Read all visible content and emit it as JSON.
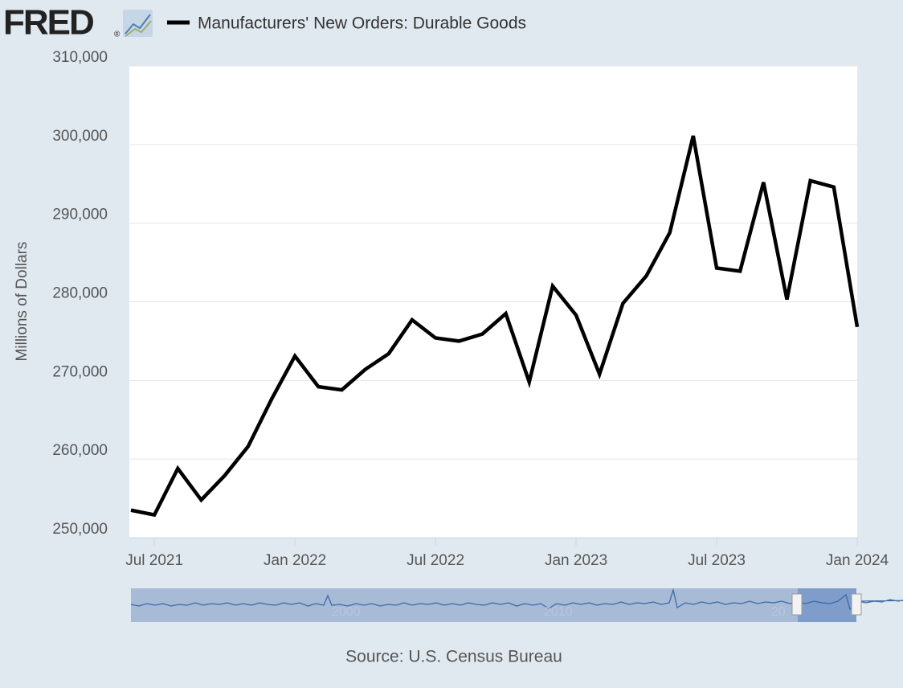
{
  "logo": {
    "text": "FRED",
    "mark": "®"
  },
  "source": "Source: U.S. Census Bureau",
  "navigator": {
    "labels": [
      "2000",
      "2010",
      "20"
    ]
  },
  "chart_data": {
    "type": "line",
    "y_label": "Millions of Dollars",
    "x": [
      "2021-06",
      "2021-07",
      "2021-08",
      "2021-09",
      "2021-10",
      "2021-11",
      "2021-12",
      "2022-01",
      "2022-02",
      "2022-03",
      "2022-04",
      "2022-05",
      "2022-06",
      "2022-07",
      "2022-08",
      "2022-09",
      "2022-10",
      "2022-11",
      "2022-12",
      "2023-01",
      "2023-02",
      "2023-03",
      "2023-04",
      "2023-05",
      "2023-06",
      "2023-07",
      "2023-08",
      "2023-09",
      "2023-10",
      "2023-11",
      "2023-12",
      "2024-01"
    ],
    "series": [
      {
        "name": "Manufacturers' New Orders: Durable Goods",
        "color": "#000000",
        "values": [
          253500,
          252900,
          258800,
          254800,
          257900,
          261600,
          267600,
          273100,
          269200,
          268800,
          271400,
          273400,
          277700,
          275400,
          275000,
          275900,
          278500,
          269800,
          282000,
          278300,
          270800,
          279800,
          283300,
          288800,
          301100,
          284300,
          283900,
          295200,
          280300,
          295400,
          294600,
          276800
        ]
      }
    ],
    "xlim": [
      "2021-06",
      "2024-01"
    ],
    "xticks": [
      {
        "value": "2021-07",
        "label": "Jul 2021"
      },
      {
        "value": "2022-01",
        "label": "Jan 2022"
      },
      {
        "value": "2022-07",
        "label": "Jul 2022"
      },
      {
        "value": "2023-01",
        "label": "Jan 2023"
      },
      {
        "value": "2023-07",
        "label": "Jul 2023"
      },
      {
        "value": "2024-01",
        "label": "Jan 2024"
      }
    ],
    "ylim": [
      250000,
      310000
    ],
    "yticks": [
      {
        "value": 250000,
        "label": "250,000"
      },
      {
        "value": 260000,
        "label": "260,000"
      },
      {
        "value": 270000,
        "label": "270,000"
      },
      {
        "value": 280000,
        "label": "280,000"
      },
      {
        "value": 290000,
        "label": "290,000"
      },
      {
        "value": 300000,
        "label": "300,000"
      },
      {
        "value": 310000,
        "label": "310,000"
      }
    ],
    "grid": true
  }
}
